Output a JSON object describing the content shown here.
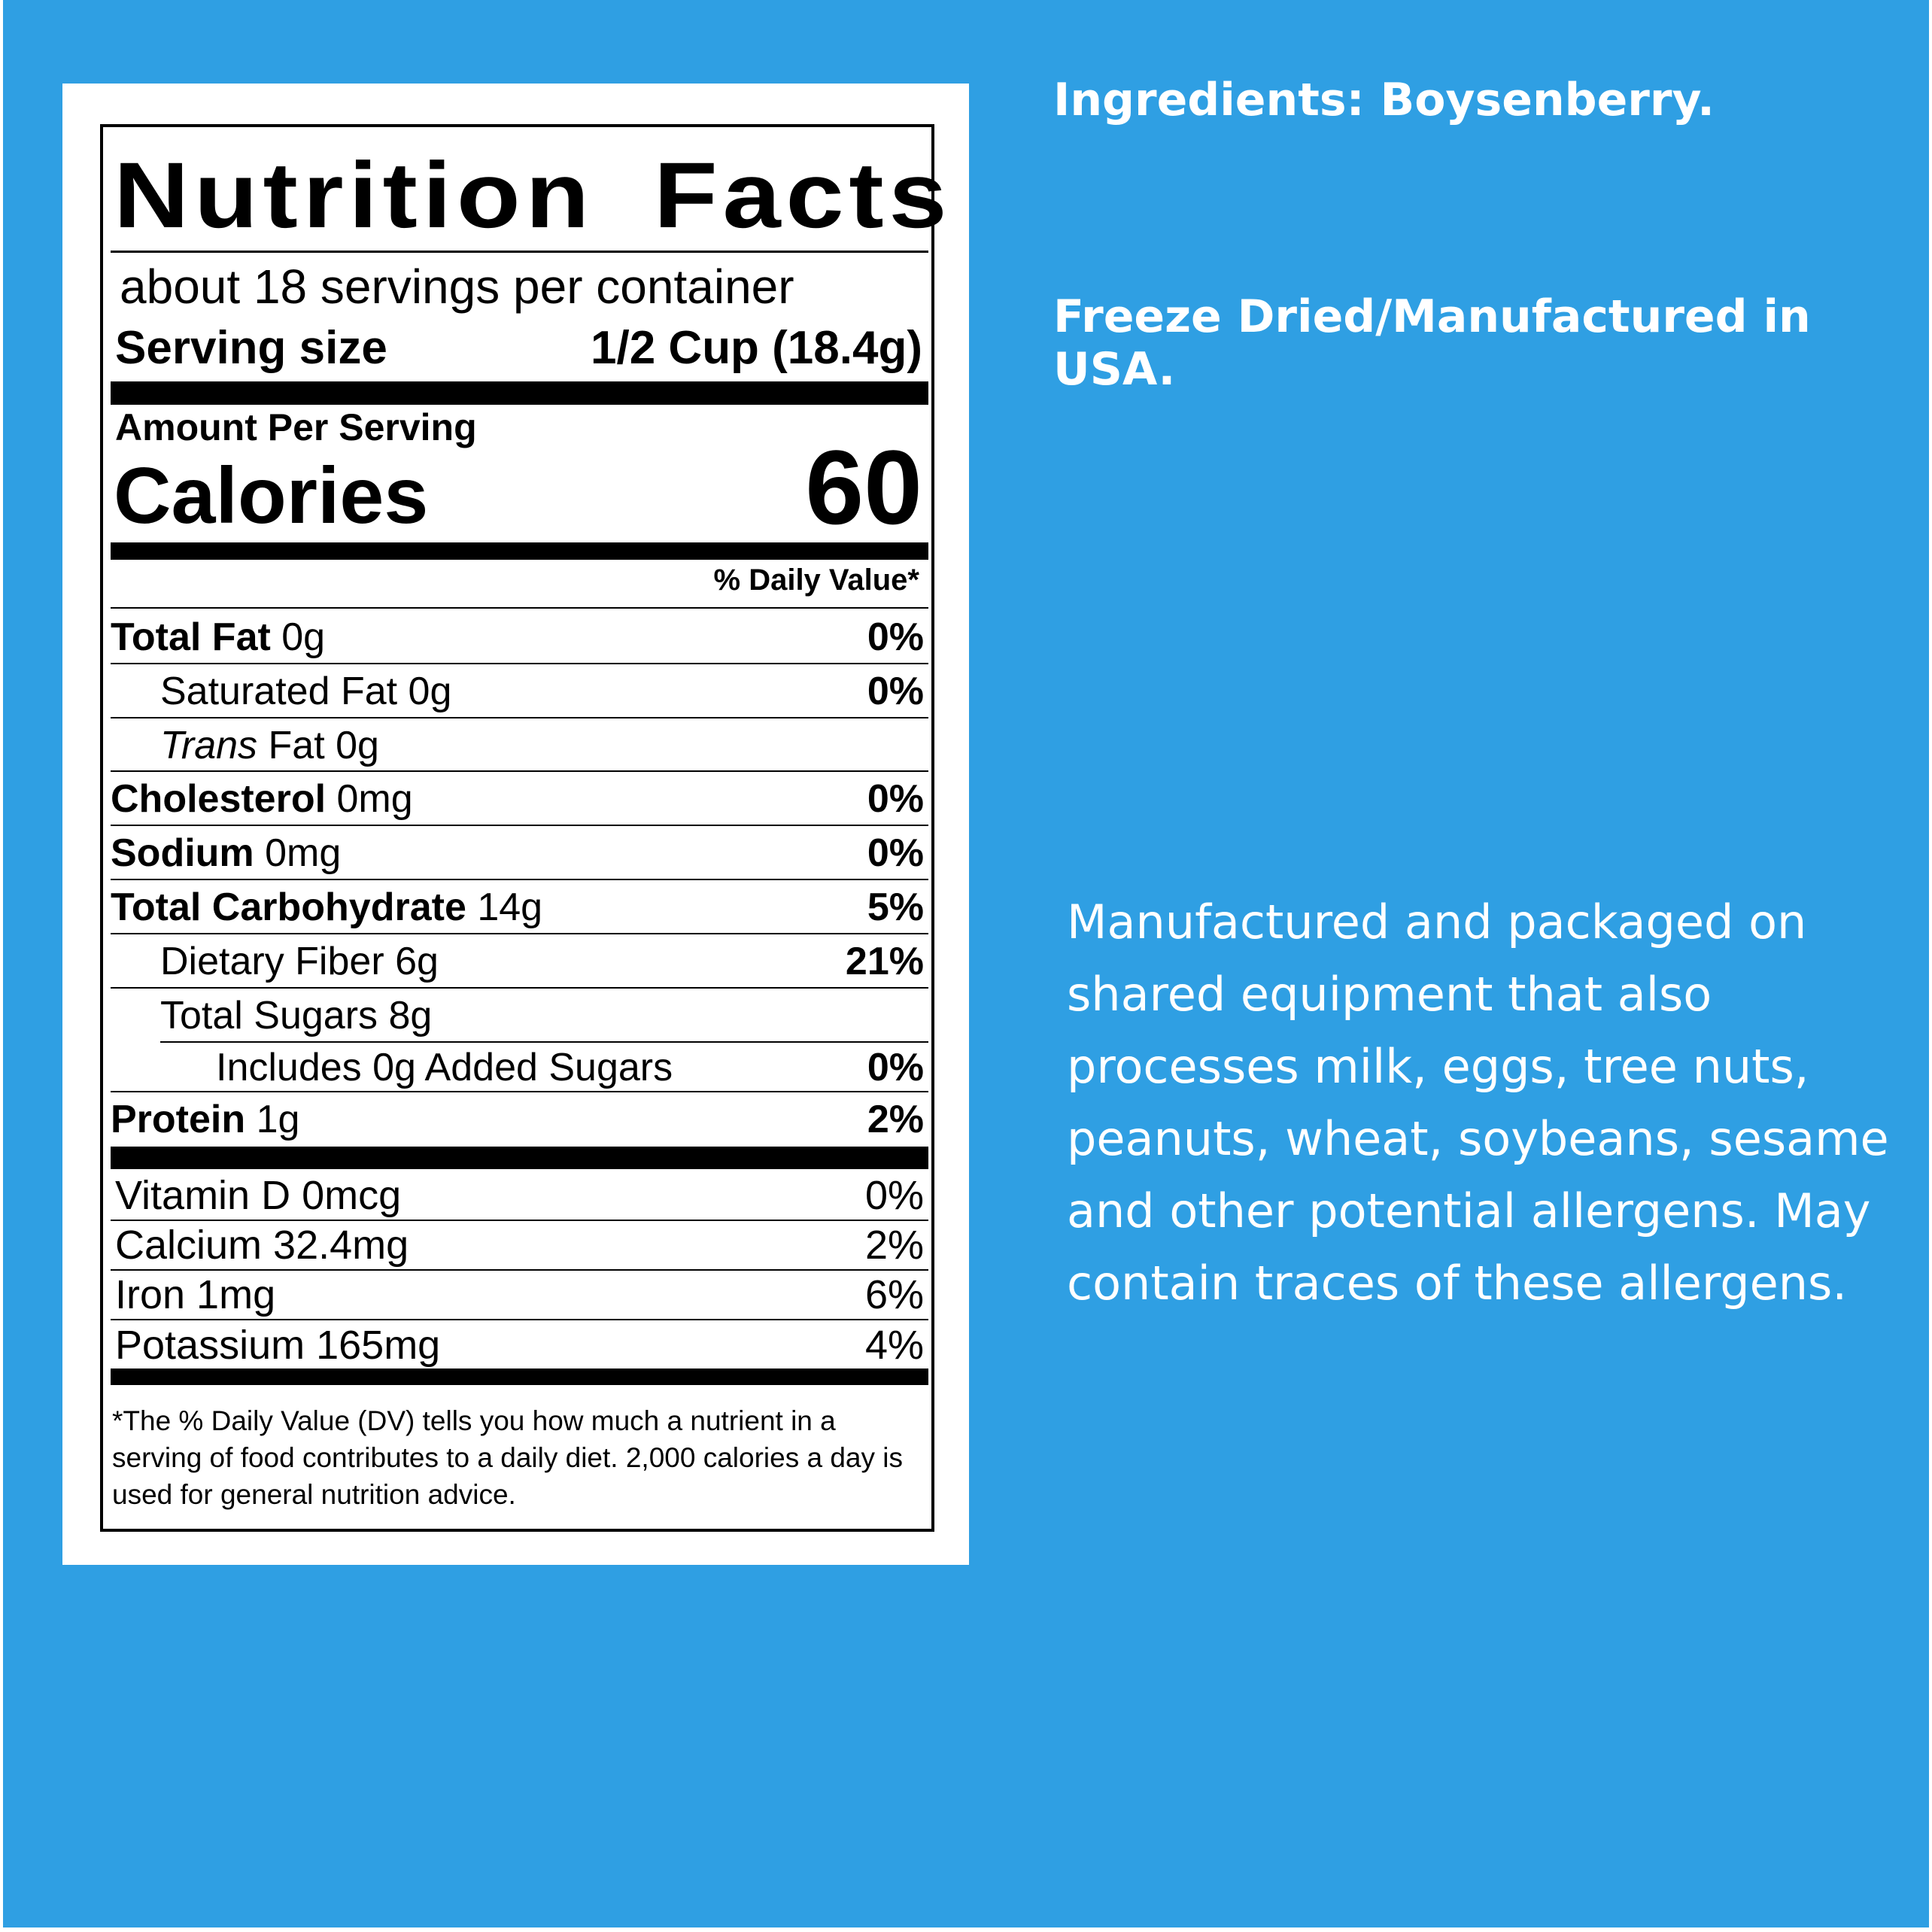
{
  "label": {
    "title": "Nutrition Facts",
    "servings": "about 18 servings per container",
    "serving_size_label": "Serving size",
    "serving_size_value": "1/2 Cup (18.4g)",
    "amount_per_serving": "Amount Per Serving",
    "calories_label": "Calories",
    "calories_value": "60",
    "dv_header": "% Daily Value*",
    "nutrients": [
      {
        "name": "Total Fat",
        "amount": "0g",
        "dv": "0%"
      },
      {
        "name": "Saturated Fat",
        "amount": "0g",
        "dv": "0%"
      },
      {
        "name": "Trans",
        "suffix": "Fat 0g",
        "dv": ""
      },
      {
        "name": "Cholesterol",
        "amount": "0mg",
        "dv": "0%"
      },
      {
        "name": "Sodium",
        "amount": "0mg",
        "dv": "0%"
      },
      {
        "name": "Total Carbohydrate",
        "amount": "14g",
        "dv": "5%"
      },
      {
        "name": "Dietary Fiber",
        "amount": "6g",
        "dv": "21%"
      },
      {
        "name": "Total Sugars",
        "amount": "8g",
        "dv": ""
      },
      {
        "name": "Includes 0g Added Sugars",
        "dv": "0%"
      },
      {
        "name": "Protein",
        "amount": "1g",
        "dv": "2%"
      }
    ],
    "vitamins": [
      {
        "name": "Vitamin D 0mcg",
        "dv": "0%"
      },
      {
        "name": "Calcium 32.4mg",
        "dv": "2%"
      },
      {
        "name": "Iron 1mg",
        "dv": "6%"
      },
      {
        "name": "Potassium 165mg",
        "dv": "4%"
      }
    ],
    "footnote": "*The % Daily Value (DV) tells you how much a nutrient in a serving of food contributes to a daily diet. 2,000 calories a day is used for general nutrition advice."
  },
  "side": {
    "ingredients": "Ingredients: Boysenberry.",
    "origin": "Freeze Dried/Manufactured in USA.",
    "allergen": [
      "Manufactured and packaged on",
      "shared equipment that also",
      "processes milk, eggs, tree nuts,",
      "peanuts, wheat, soybeans, sesame",
      "and other potential allergens. May",
      "contain traces of these allergens."
    ]
  },
  "colors": {
    "background": "#2f9fe3",
    "text": "#ffffff"
  }
}
